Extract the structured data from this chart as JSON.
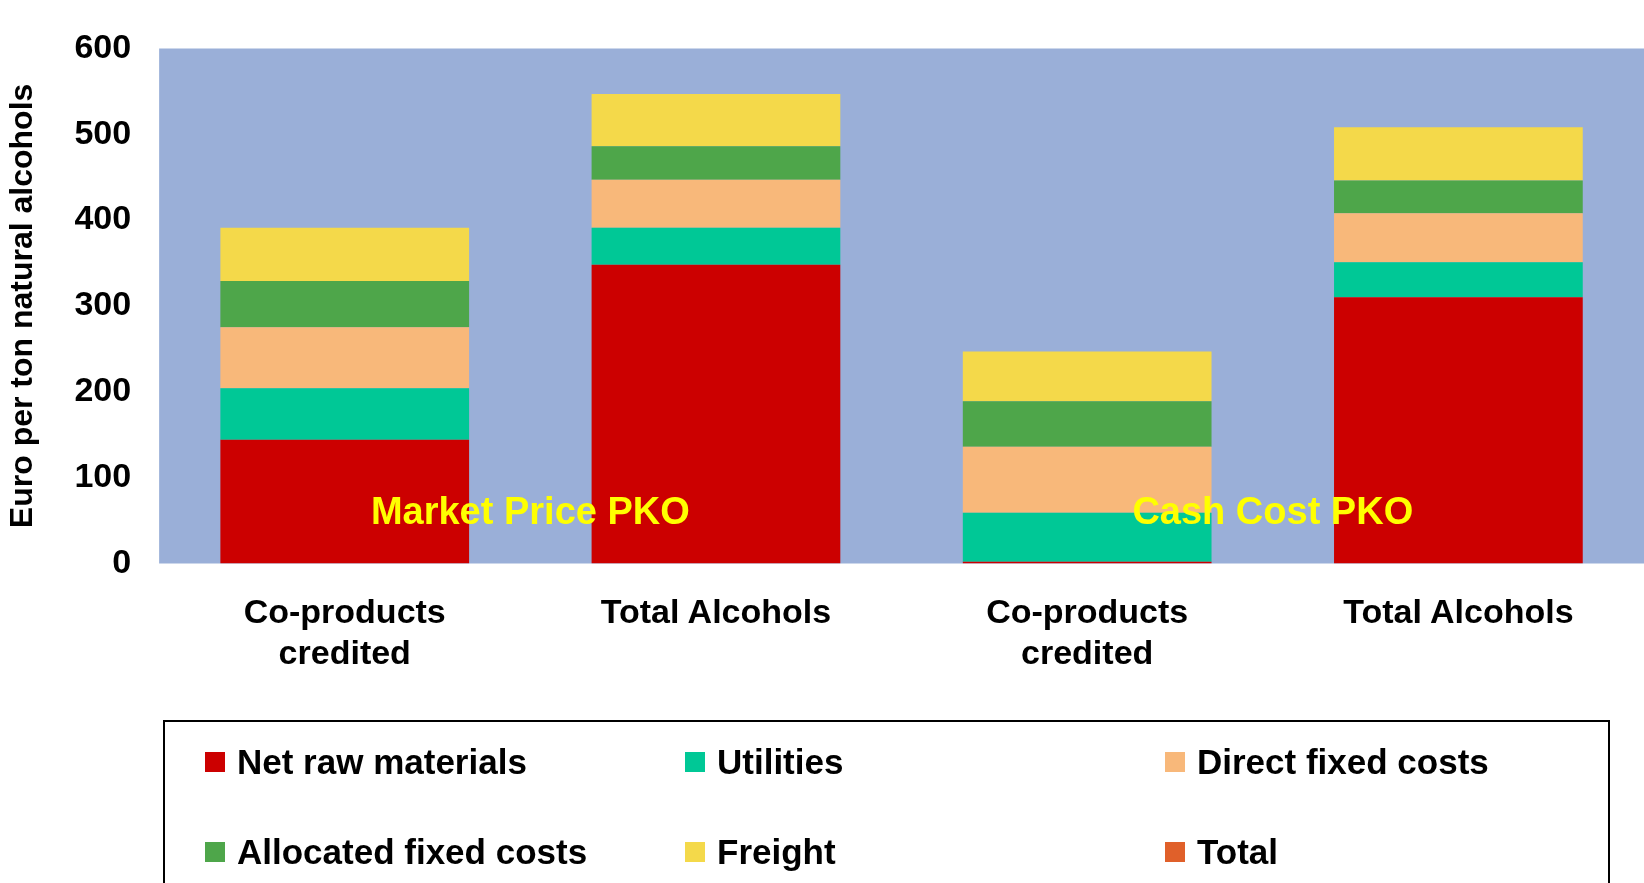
{
  "chart_data": {
    "type": "bar",
    "stacked": true,
    "ylabel": "Euro per ton natural alcohols",
    "categories": [
      "Co-products credited",
      "Total Alcohols",
      "Co-products credited",
      "Total Alcohols"
    ],
    "series": [
      {
        "name": "Net raw materials",
        "color": "#cc0000",
        "values": [
          144,
          348,
          2,
          310
        ]
      },
      {
        "name": "Utilities",
        "color": "#00c896",
        "values": [
          60,
          43,
          57,
          41
        ]
      },
      {
        "name": "Direct fixed costs",
        "color": "#f8b87a",
        "values": [
          71,
          56,
          77,
          57
        ]
      },
      {
        "name": "Allocated fixed costs",
        "color": "#4ea64a",
        "values": [
          54,
          39,
          53,
          38
        ]
      },
      {
        "name": "Freight",
        "color": "#f4d94a",
        "values": [
          62,
          61,
          58,
          62
        ]
      },
      {
        "name": "Total",
        "color": "#e0602a",
        "values": [
          null,
          null,
          null,
          null
        ]
      }
    ],
    "ylim": [
      0,
      600
    ],
    "yticks": [
      0,
      100,
      200,
      300,
      400,
      500,
      600
    ],
    "grid": false,
    "legend": "bottom",
    "annotations": [
      "Market Price PKO",
      "Cash Cost PKO"
    ]
  }
}
